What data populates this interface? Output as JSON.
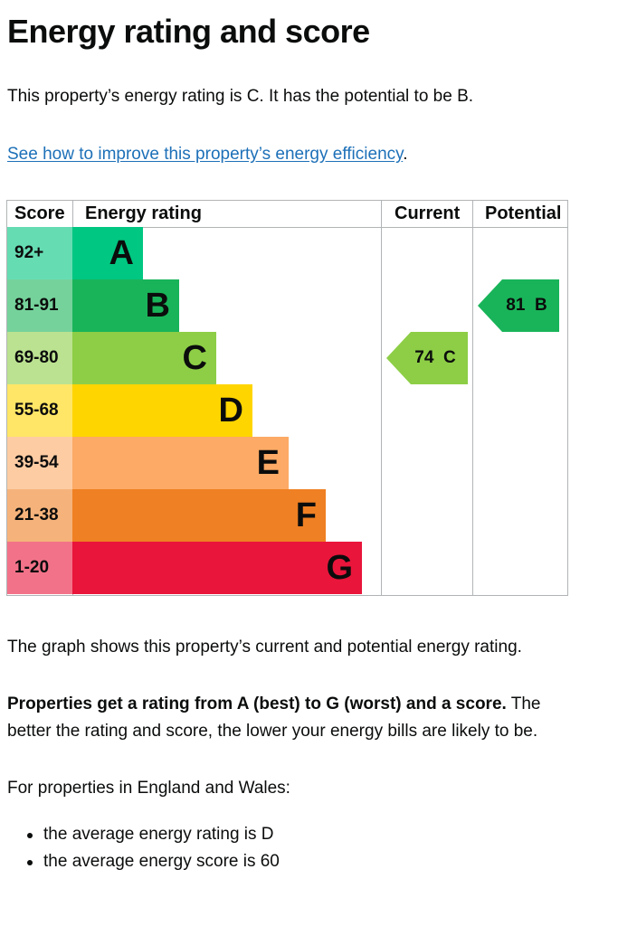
{
  "title": "Energy rating and score",
  "intro": "This property’s energy rating is C. It has the potential to be B.",
  "improve_link": "See how to improve this property’s energy efficiency",
  "improve_link_suffix": ".",
  "table": {
    "headers": {
      "score": "Score",
      "rating": "Energy rating",
      "current": "Current",
      "potential": "Potential"
    },
    "bands": [
      {
        "range": "92+",
        "letter": "A",
        "color": "#00c781",
        "score_bg": "#66dcb3"
      },
      {
        "range": "81-91",
        "letter": "B",
        "color": "#19b459",
        "score_bg": "#75d29b"
      },
      {
        "range": "69-80",
        "letter": "C",
        "color": "#8dce46",
        "score_bg": "#bbe290"
      },
      {
        "range": "55-68",
        "letter": "D",
        "color": "#ffd500",
        "score_bg": "#ffe666"
      },
      {
        "range": "39-54",
        "letter": "E",
        "color": "#fcaa65",
        "score_bg": "#fdcca3"
      },
      {
        "range": "21-38",
        "letter": "F",
        "color": "#ef8023",
        "score_bg": "#f5b37b"
      },
      {
        "range": "1-20",
        "letter": "G",
        "color": "#e9153b",
        "score_bg": "#f27389"
      }
    ],
    "current": {
      "label": "74  C",
      "band": "C",
      "color": "#8dce46"
    },
    "potential": {
      "label": "81  B",
      "band": "B",
      "color": "#19b459"
    }
  },
  "graph_caption": "The graph shows this property’s current and potential energy rating.",
  "rating_note_bold": "Properties get a rating from A (best) to G (worst) and a score.",
  "rating_note_rest": " The better the rating and score, the lower your energy bills are likely to be.",
  "england_wales": "For properties in England and Wales:",
  "averages": [
    "the average energy rating is D",
    "the average energy score is 60"
  ]
}
